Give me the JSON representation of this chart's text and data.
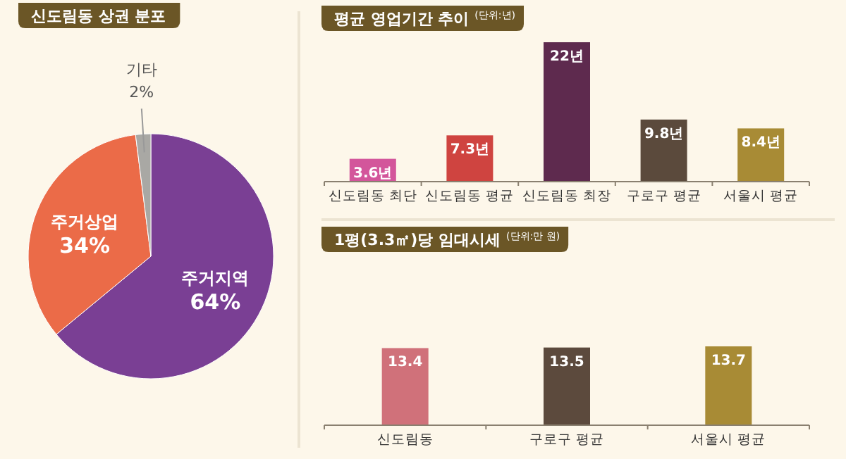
{
  "chart_data": [
    {
      "type": "pie",
      "title": "신도림동 상권 분포",
      "categories": [
        "주거지역",
        "주거상업",
        "기타"
      ],
      "values": [
        64,
        34,
        2
      ],
      "colors": [
        "#7a3f94",
        "#eb6b48",
        "#a9a8a4"
      ],
      "value_labels": [
        "64%",
        "34%",
        "2%"
      ]
    },
    {
      "type": "bar",
      "title": "평균 영업기간 추이",
      "subtitle": "(단위:년)",
      "categories": [
        "신도림동 최단",
        "신도림동 평균",
        "신도림동 최장",
        "구로구 평균",
        "서울시 평균"
      ],
      "values": [
        3.6,
        7.3,
        22,
        9.8,
        8.4
      ],
      "colors": [
        "#d3569b",
        "#cf4440",
        "#5e2a4e",
        "#5b4a3c",
        "#a88b35"
      ],
      "value_labels": [
        "3.6년",
        "7.3년",
        "22년",
        "9.8년",
        "8.4년"
      ],
      "tick_labels": "x"
    },
    {
      "type": "bar",
      "title": "1평(3.3㎡)당 임대시세",
      "subtitle": "(단위:만 원)",
      "categories": [
        "신도림동",
        "구로구 평균",
        "서울시 평균"
      ],
      "values": [
        13.4,
        13.5,
        13.7
      ],
      "colors": [
        "#d0717a",
        "#5c4a3d",
        "#a88b35"
      ],
      "value_labels": [
        "13.4",
        "13.5",
        "13.7"
      ],
      "tick_labels": "x"
    }
  ]
}
